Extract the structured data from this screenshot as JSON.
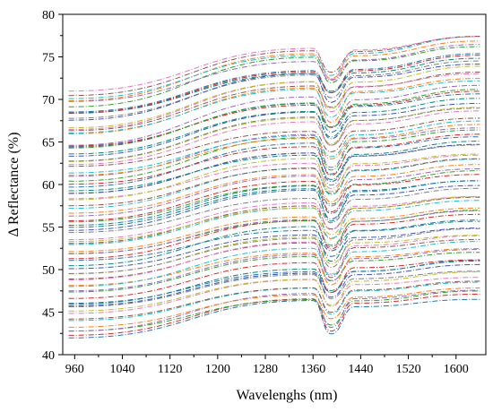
{
  "chart_data": {
    "type": "line",
    "title": "",
    "xlabel": "Wavelenghs (nm)",
    "ylabel": "Δ Reflectance (%)",
    "xlim": [
      940,
      1650
    ],
    "ylim": [
      40,
      80
    ],
    "xticks": [
      960,
      1040,
      1120,
      1200,
      1280,
      1360,
      1440,
      1520,
      1600
    ],
    "yticks": [
      40,
      45,
      50,
      55,
      60,
      65,
      70,
      75,
      80
    ],
    "grid": false,
    "legend": "none",
    "x": [
      950,
      1360,
      1390,
      1430,
      1640
    ],
    "series_count": 80,
    "series_ranges": [
      [
        42.0,
        46.3
      ],
      [
        71.0,
        78.0
      ]
    ],
    "series_color_palette": [
      "#1f77b4",
      "#d62728",
      "#2ca02c",
      "#9467bd",
      "#ff7f0e",
      "#17becf",
      "#8c564b",
      "#e377c2",
      "#bcbd22",
      "#7f7f7f",
      "#3f51b5",
      "#00897b"
    ],
    "line_style": "dash-dot"
  }
}
